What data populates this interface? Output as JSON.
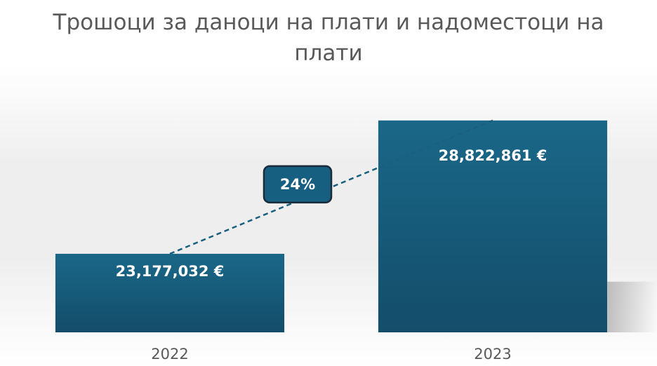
{
  "chart_data": {
    "type": "bar",
    "title": "Трошоци за даноци на плати и надоместоци на плати",
    "categories": [
      "2022",
      "2023"
    ],
    "values": [
      23177032,
      28822861
    ],
    "value_labels": [
      "23,177,032 €",
      "28,822,861 €"
    ],
    "annotation": "24%",
    "color": "#175f80",
    "ylim": [
      19850000,
      29500000
    ]
  }
}
